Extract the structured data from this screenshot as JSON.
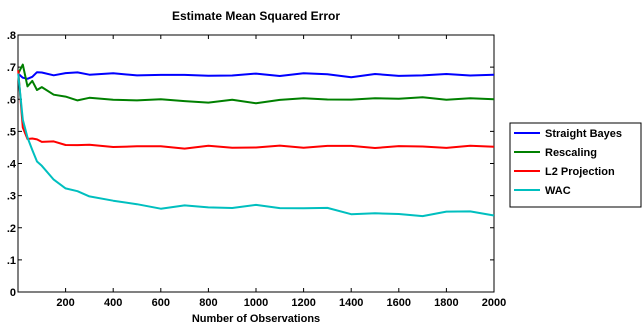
{
  "chart_data": {
    "type": "line",
    "title": "Estimate Mean Squared Error",
    "xlabel": "Number of Observations",
    "ylabel": "",
    "xlim": [
      0,
      2000
    ],
    "ylim": [
      0,
      0.8
    ],
    "x_ticks": [
      200,
      400,
      600,
      800,
      1000,
      1200,
      1400,
      1600,
      1800,
      2000
    ],
    "x_tick_labels": [
      "200",
      "400",
      "600",
      "800",
      "1000",
      "1200",
      "1400",
      "1600",
      "1800",
      "2000"
    ],
    "y_ticks": [
      0,
      0.1,
      0.2,
      0.3,
      0.4,
      0.5,
      0.6,
      0.7,
      0.8
    ],
    "y_tick_labels": [
      "0",
      ".1",
      ".2",
      ".3",
      ".4",
      ".5",
      ".6",
      ".7",
      ".8"
    ],
    "grid": false,
    "legend_position": "outside-right",
    "x": [
      1,
      20,
      40,
      60,
      80,
      100,
      150,
      200,
      250,
      300,
      400,
      500,
      600,
      700,
      800,
      900,
      1000,
      1100,
      1200,
      1300,
      1400,
      1500,
      1600,
      1700,
      1800,
      1900,
      2000
    ],
    "series": [
      {
        "name": "Straight Bayes",
        "color": "#0000ff",
        "values": [
          0.68,
          0.67,
          0.66,
          0.672,
          0.685,
          0.68,
          0.678,
          0.68,
          0.682,
          0.68,
          0.678,
          0.675,
          0.678,
          0.672,
          0.676,
          0.674,
          0.677,
          0.676,
          0.679,
          0.677,
          0.672,
          0.675,
          0.674,
          0.676,
          0.675,
          0.677,
          0.676
        ]
      },
      {
        "name": "Rescaling",
        "color": "#008000",
        "values": [
          0.68,
          0.705,
          0.64,
          0.66,
          0.625,
          0.64,
          0.615,
          0.605,
          0.6,
          0.603,
          0.597,
          0.6,
          0.597,
          0.595,
          0.592,
          0.595,
          0.59,
          0.598,
          0.6,
          0.603,
          0.597,
          0.602,
          0.605,
          0.603,
          0.6,
          0.605,
          0.6
        ]
      },
      {
        "name": "L2 Projection",
        "color": "#ff0000",
        "values": [
          0.69,
          0.51,
          0.48,
          0.475,
          0.475,
          0.47,
          0.465,
          0.46,
          0.458,
          0.455,
          0.455,
          0.452,
          0.452,
          0.45,
          0.452,
          0.45,
          0.452,
          0.452,
          0.452,
          0.455,
          0.452,
          0.452,
          0.452,
          0.452,
          0.452,
          0.452,
          0.452
        ]
      },
      {
        "name": "WAC",
        "color": "#00bfbf",
        "values": [
          0.68,
          0.54,
          0.48,
          0.44,
          0.41,
          0.39,
          0.35,
          0.325,
          0.31,
          0.3,
          0.285,
          0.27,
          0.263,
          0.268,
          0.262,
          0.265,
          0.268,
          0.262,
          0.263,
          0.258,
          0.245,
          0.245,
          0.24,
          0.24,
          0.248,
          0.25,
          0.238
        ]
      }
    ]
  }
}
